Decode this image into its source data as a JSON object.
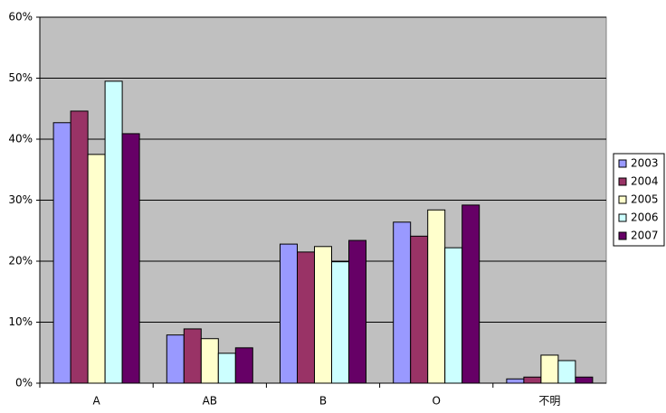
{
  "chart_data": {
    "type": "bar",
    "categories": [
      "A",
      "AB",
      "B",
      "O",
      "不明"
    ],
    "series": [
      {
        "name": "2003",
        "color": "#9999ff",
        "values": [
          42.7,
          7.9,
          22.8,
          26.4,
          0.7
        ]
      },
      {
        "name": "2004",
        "color": "#993366",
        "values": [
          44.6,
          8.9,
          21.5,
          24.1,
          1.0
        ]
      },
      {
        "name": "2005",
        "color": "#ffffcc",
        "values": [
          37.5,
          7.3,
          22.4,
          28.4,
          4.6
        ]
      },
      {
        "name": "2006",
        "color": "#ccffff",
        "values": [
          49.5,
          4.9,
          19.9,
          22.2,
          3.7
        ]
      },
      {
        "name": "2007",
        "color": "#660066",
        "values": [
          40.9,
          5.8,
          23.4,
          29.2,
          1.0
        ]
      }
    ],
    "ylim": [
      0,
      60
    ],
    "yticks": [
      {
        "value": 0,
        "label": "0%"
      },
      {
        "value": 10,
        "label": "10%"
      },
      {
        "value": 20,
        "label": "20%"
      },
      {
        "value": 30,
        "label": "30%"
      },
      {
        "value": 40,
        "label": "40%"
      },
      {
        "value": 50,
        "label": "50%"
      },
      {
        "value": 60,
        "label": "60%"
      }
    ],
    "grid": true,
    "legend": "right",
    "plot_background": "#c0c0c0"
  }
}
